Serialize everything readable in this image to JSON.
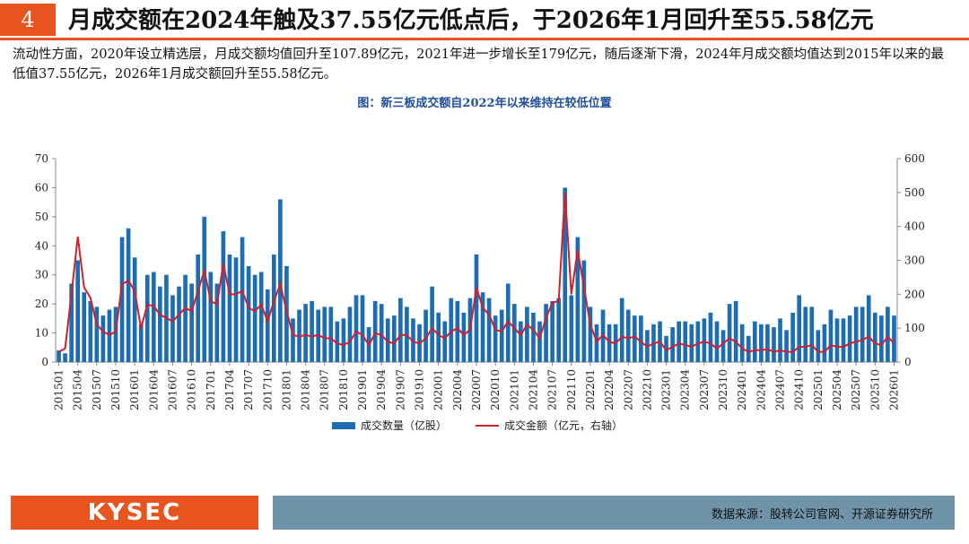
{
  "header": {
    "number": "4",
    "title": "月成交额在2024年触及37.55亿元低点后，于2026年1月回升至55.58亿元"
  },
  "text": "流动性方面，2020年设立精选层，月成交额均值回升至107.89亿元，2021年进一步增长至179亿元，随后逐渐下滑，2024年月成交额均值达到2015年以来的最低值37.55亿元，2026年1月成交额回升至55.58亿元。",
  "chart_data": {
    "type": "bar_line",
    "title": "图：新三板成交额自2022年以来维持在较低位置",
    "categories": [
      "201501",
      null,
      null,
      "201504",
      null,
      null,
      "201507",
      null,
      null,
      "201510",
      null,
      null,
      "201601",
      null,
      null,
      "201604",
      null,
      null,
      "201607",
      null,
      null,
      "201610",
      null,
      null,
      "201701",
      null,
      null,
      "201704",
      null,
      null,
      "201707",
      null,
      null,
      "201710",
      null,
      null,
      "201801",
      null,
      null,
      "201804",
      null,
      null,
      "201807",
      null,
      null,
      "201810",
      null,
      null,
      "201901",
      null,
      null,
      "201904",
      null,
      null,
      "201907",
      null,
      null,
      "201910",
      null,
      null,
      "202001",
      null,
      null,
      "202004",
      null,
      null,
      "202007",
      null,
      null,
      "202010",
      null,
      null,
      "202101",
      null,
      null,
      "202104",
      null,
      null,
      "202107",
      null,
      null,
      "202110",
      null,
      null,
      "202201",
      null,
      null,
      "202204",
      null,
      null,
      "202207",
      null,
      null,
      "202210",
      null,
      null,
      "202301",
      null,
      null,
      "202304",
      null,
      null,
      "202307",
      null,
      null,
      "202310",
      null,
      null,
      "202401",
      null,
      null,
      "202404",
      null,
      null,
      "202407",
      null,
      null,
      "202410",
      null,
      null,
      "202501",
      null,
      null,
      "202504",
      null,
      null,
      "202507",
      null,
      null,
      "202510",
      null,
      null,
      "202601"
    ],
    "series": [
      {
        "name": "成交数量（亿股）",
        "type": "bar",
        "color": "#1c6db3",
        "values": [
          4,
          3,
          27,
          35,
          24,
          21,
          19,
          16,
          18,
          19,
          43,
          46,
          36,
          13,
          30,
          31,
          26,
          30,
          23,
          26,
          30,
          27,
          37,
          50,
          31,
          27,
          45,
          37,
          36,
          43,
          33,
          30,
          31,
          25,
          37,
          56,
          33,
          15,
          18,
          20,
          21,
          18,
          19,
          19,
          14,
          15,
          19,
          23,
          23,
          12,
          21,
          20,
          15,
          16,
          22,
          19,
          15,
          13,
          18,
          26,
          17,
          14,
          22,
          21,
          17,
          22,
          37,
          24,
          22,
          16,
          18,
          27,
          20,
          14,
          19,
          17,
          14,
          20,
          21,
          22,
          60,
          23,
          43,
          35,
          19,
          13,
          18,
          13,
          13,
          22,
          18,
          16,
          16,
          11,
          13,
          14,
          9,
          12,
          14,
          14,
          13,
          14,
          15,
          17,
          14,
          11,
          20,
          21,
          13,
          9,
          14,
          13,
          13,
          12,
          15,
          11,
          17,
          23,
          19,
          19,
          11,
          13,
          18,
          15,
          15,
          16,
          19,
          19,
          23,
          17,
          16,
          19,
          16
        ]
      },
      {
        "name": "成交金额（亿元，右轴）",
        "type": "line",
        "axis": "y2",
        "color": "#d0202a",
        "values": [
          30,
          40,
          200,
          370,
          220,
          190,
          110,
          90,
          80,
          90,
          230,
          240,
          210,
          100,
          170,
          165,
          140,
          130,
          120,
          140,
          160,
          150,
          210,
          270,
          180,
          170,
          290,
          200,
          200,
          210,
          160,
          150,
          170,
          120,
          180,
          230,
          150,
          80,
          75,
          80,
          75,
          80,
          70,
          70,
          55,
          50,
          60,
          90,
          80,
          50,
          85,
          80,
          60,
          55,
          80,
          80,
          60,
          55,
          70,
          100,
          80,
          70,
          90,
          100,
          80,
          95,
          220,
          160,
          140,
          95,
          90,
          120,
          100,
          80,
          110,
          95,
          70,
          130,
          175,
          180,
          500,
          200,
          330,
          220,
          110,
          60,
          80,
          60,
          55,
          75,
          70,
          75,
          60,
          45,
          55,
          60,
          35,
          45,
          55,
          50,
          45,
          55,
          60,
          55,
          40,
          55,
          70,
          60,
          40,
          30,
          35,
          35,
          38,
          30,
          35,
          30,
          30,
          45,
          45,
          50,
          30,
          30,
          50,
          45,
          45,
          55,
          60,
          65,
          75,
          55,
          50,
          75,
          55.58
        ]
      }
    ],
    "ylim": [
      0,
      70
    ],
    "yticks": [
      0,
      10,
      20,
      30,
      40,
      50,
      60,
      70
    ],
    "y2lim": [
      0,
      600
    ],
    "y2ticks": [
      0,
      100,
      200,
      300,
      400,
      500,
      600
    ],
    "legend": "bottom"
  },
  "footer": {
    "logo": "KYSEC",
    "source": "数据来源：股转公司官网、开源证券研究所"
  }
}
